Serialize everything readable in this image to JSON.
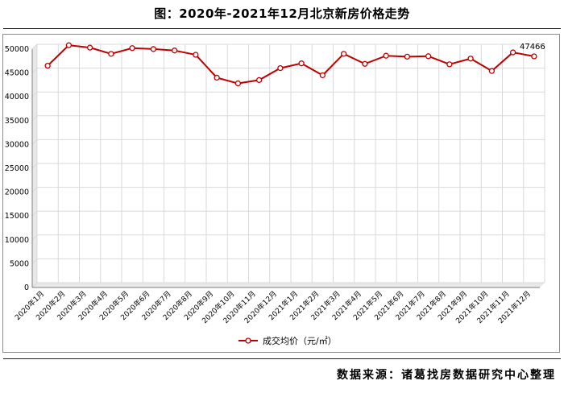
{
  "title": "图：2020年-2021年12月北京新房价格走势",
  "source": "数据来源：诸葛找房数据研究中心整理",
  "colors": {
    "series": "#c00000",
    "grid": "#d9d9d9",
    "axis": "#7f7f7f",
    "wall": "#e8e8e8"
  },
  "chart_data": {
    "type": "line",
    "categories": [
      "2020年1月",
      "2020年2月",
      "2020年3月",
      "2020年4月",
      "2020年5月",
      "2020年6月",
      "2020年7月",
      "2020年8月",
      "2020年9月",
      "2020年10月",
      "2020年11月",
      "2020年12月",
      "2021年1月",
      "2021年2月",
      "2021年3月",
      "2021年4月",
      "2021年5月",
      "2021年6月",
      "2021年7月",
      "2021年8月",
      "2021年9月",
      "2021年10月",
      "2021年11月",
      "2021年12月"
    ],
    "series": [
      {
        "name": "成交均价（元/㎡）",
        "values": [
          45500,
          49800,
          49300,
          48000,
          49200,
          49000,
          48700,
          47800,
          43000,
          41800,
          42500,
          45000,
          46000,
          43500,
          48000,
          45900,
          47600,
          47400,
          47500,
          45800,
          47000,
          44400,
          48300,
          47466
        ]
      }
    ],
    "data_labels": [
      {
        "index": 23,
        "text": "47466"
      }
    ],
    "yticks": [
      "0",
      "5000",
      "10000",
      "15000",
      "20000",
      "25000",
      "30000",
      "35000",
      "40000",
      "45000",
      "50000"
    ],
    "ylim": [
      0,
      50000
    ],
    "grid": true,
    "legend_position": "bottom"
  }
}
